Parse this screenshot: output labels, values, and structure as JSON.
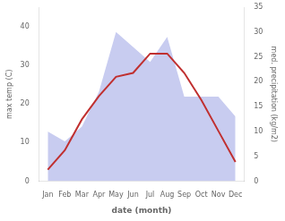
{
  "chart_data": {
    "type": "line",
    "xlabel": "date (month)",
    "ylabel": "max temp (C)",
    "y2label": "med. precipitation (kg/m2)",
    "categories": [
      "Jan",
      "Feb",
      "Mar",
      "Apr",
      "May",
      "Jun",
      "Jul",
      "Aug",
      "Sep",
      "Oct",
      "Nov",
      "Dec"
    ],
    "series": [
      {
        "type": "area",
        "axis": "y2",
        "color": "#c8ccf0",
        "values": [
          10,
          8,
          11,
          18,
          30,
          27,
          24,
          29,
          17,
          17,
          17,
          13
        ]
      },
      {
        "type": "line",
        "color": "#c03030",
        "values": [
          3,
          8,
          16,
          22,
          27,
          28,
          33,
          33,
          28,
          21,
          13,
          5
        ]
      }
    ],
    "ylim": [
      0,
      45
    ],
    "yticks": [
      0,
      10,
      20,
      30,
      40
    ],
    "y2lim": [
      0,
      35
    ],
    "y2ticks": [
      0,
      5,
      10,
      15,
      20,
      25,
      30,
      35
    ],
    "grid": false
  }
}
